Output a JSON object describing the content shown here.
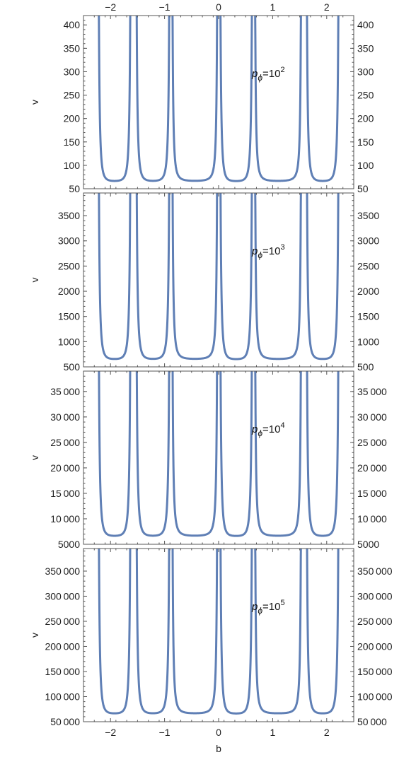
{
  "chart_data": {
    "type": "line",
    "layout": "stacked-panels",
    "xlabel": "b",
    "xlim": [
      -2.5,
      2.5
    ],
    "x_ticks": [
      -2,
      -1,
      0,
      1,
      2
    ],
    "x_tick_labels": [
      "−2",
      "−1",
      "0",
      "1",
      "2"
    ],
    "x_tick_positions": [
      "top",
      "bottom"
    ],
    "series_color": "#5f7fb5",
    "grid": false,
    "curve": {
      "minimum_b": [
        -1.98,
        -1.18,
        -0.4,
        0.4,
        1.18,
        1.98
      ],
      "asymptote_b": [
        -2.25,
        -1.6,
        -1.55,
        -0.88,
        0.0,
        0.65,
        1.55,
        1.6,
        2.25
      ]
    },
    "panels": [
      {
        "ylabel": "v",
        "ylim": [
          50,
          420
        ],
        "y_ticks": [
          50,
          100,
          150,
          200,
          250,
          300,
          350,
          400
        ],
        "y_tick_labels": [
          "50",
          "100",
          "150",
          "200",
          "250",
          "300",
          "350",
          "400"
        ],
        "minimum_v": 67,
        "annotation": {
          "symbol": "p",
          "subscript": "ϕ",
          "equals": "=",
          "base": "10",
          "exponent": "2"
        }
      },
      {
        "ylabel": "v",
        "ylim": [
          500,
          3950
        ],
        "y_ticks": [
          500,
          1000,
          1500,
          2000,
          2500,
          3000,
          3500
        ],
        "y_tick_labels": [
          "500",
          "1000",
          "1500",
          "2000",
          "2500",
          "3000",
          "3500"
        ],
        "minimum_v": 660,
        "annotation": {
          "symbol": "p",
          "subscript": "ϕ",
          "equals": "=",
          "base": "10",
          "exponent": "3"
        }
      },
      {
        "ylabel": "v",
        "ylim": [
          5000,
          39000
        ],
        "y_ticks": [
          5000,
          10000,
          15000,
          20000,
          25000,
          30000,
          35000
        ],
        "y_tick_labels": [
          "5000",
          "10 000",
          "15 000",
          "20 000",
          "25 000",
          "30 000",
          "35 000"
        ],
        "minimum_v": 6700,
        "annotation": {
          "symbol": "p",
          "subscript": "ϕ",
          "equals": "=",
          "base": "10",
          "exponent": "4"
        }
      },
      {
        "ylabel": "v",
        "ylim": [
          50000,
          395000
        ],
        "y_ticks": [
          50000,
          100000,
          150000,
          200000,
          250000,
          300000,
          350000
        ],
        "y_tick_labels": [
          "50 000",
          "100 000",
          "150 000",
          "200 000",
          "250 000",
          "300 000",
          "350 000"
        ],
        "minimum_v": 67000,
        "annotation": {
          "symbol": "p",
          "subscript": "ϕ",
          "equals": "=",
          "base": "10",
          "exponent": "5"
        }
      }
    ]
  }
}
